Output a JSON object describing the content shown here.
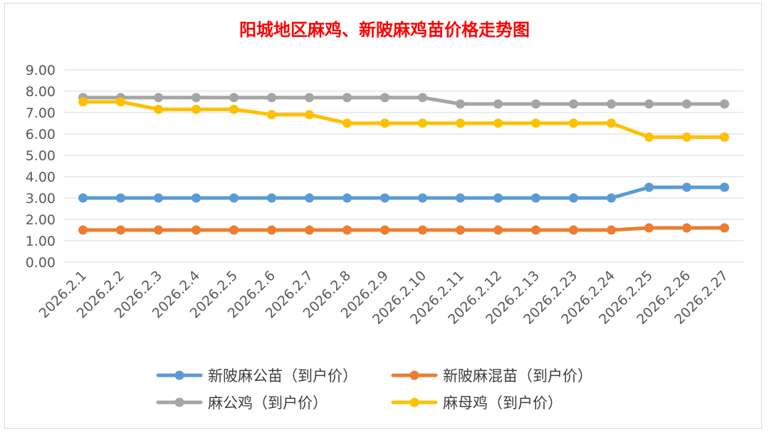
{
  "chart_data": {
    "type": "line",
    "title": "阳城地区麻鸡、新陂麻鸡苗价格走势图",
    "categories": [
      "2026.2.1",
      "2026.2.2",
      "2026.2.3",
      "2026.2.4",
      "2026.2.5",
      "2026.2.6",
      "2026.2.7",
      "2026.2.8",
      "2026.2.9",
      "2026.2.10",
      "2026.2.11",
      "2026.2.12",
      "2026.2.13",
      "2026.2.23",
      "2026.2.24",
      "2026.2.25",
      "2026.2.26",
      "2026.2.27"
    ],
    "y_ticks": [
      "0.00",
      "1.00",
      "2.00",
      "3.00",
      "4.00",
      "5.00",
      "6.00",
      "7.00",
      "8.00",
      "9.00"
    ],
    "ylim": [
      0,
      9
    ],
    "grid": true,
    "legend_position": "bottom",
    "series": [
      {
        "name": "新陂麻公苗（到户价）",
        "color": "#5B9BD5",
        "values": [
          3.0,
          3.0,
          3.0,
          3.0,
          3.0,
          3.0,
          3.0,
          3.0,
          3.0,
          3.0,
          3.0,
          3.0,
          3.0,
          3.0,
          3.0,
          3.5,
          3.5,
          3.5
        ]
      },
      {
        "name": "新陂麻混苗（到户价）",
        "color": "#ED7D31",
        "values": [
          1.5,
          1.5,
          1.5,
          1.5,
          1.5,
          1.5,
          1.5,
          1.5,
          1.5,
          1.5,
          1.5,
          1.5,
          1.5,
          1.5,
          1.5,
          1.6,
          1.6,
          1.6
        ]
      },
      {
        "name": "麻公鸡（到户价）",
        "color": "#A5A5A5",
        "values": [
          7.7,
          7.7,
          7.7,
          7.7,
          7.7,
          7.7,
          7.7,
          7.7,
          7.7,
          7.7,
          7.4,
          7.4,
          7.4,
          7.4,
          7.4,
          7.4,
          7.4,
          7.4
        ]
      },
      {
        "name": "麻母鸡（到户价）",
        "color": "#FFC000",
        "values": [
          7.5,
          7.5,
          7.15,
          7.15,
          7.15,
          6.9,
          6.9,
          6.5,
          6.5,
          6.5,
          6.5,
          6.5,
          6.5,
          6.5,
          6.5,
          5.85,
          5.85,
          5.85
        ]
      }
    ]
  }
}
